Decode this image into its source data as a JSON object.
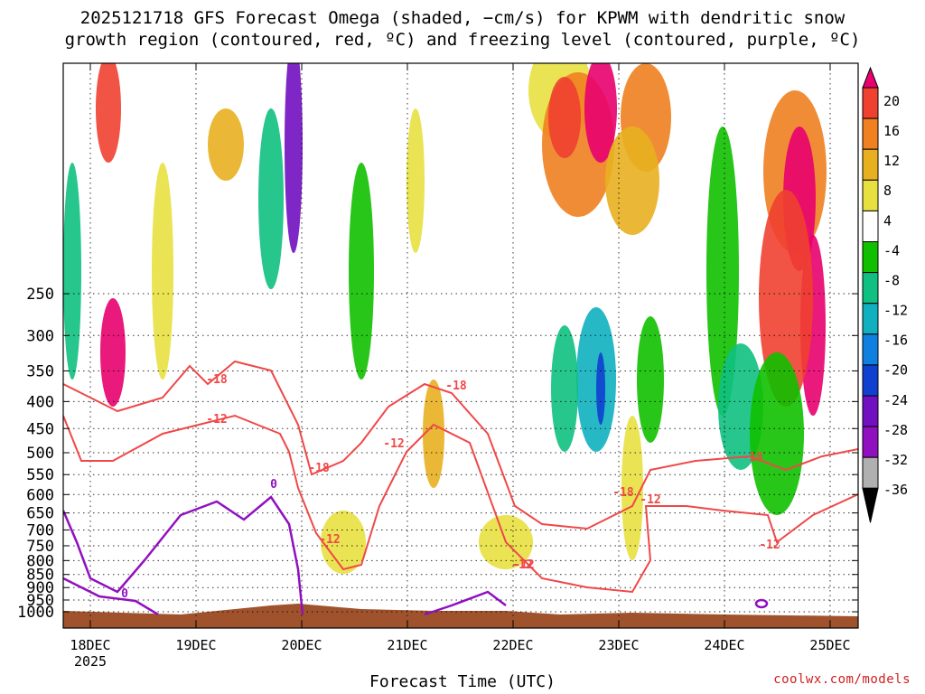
{
  "title_line1": "2025121718 GFS Forecast Omega (shaded, −cm/s) for KPWM with dendritic snow",
  "title_line2": "growth region (contoured, red, ºC) and freezing level (contoured, purple, ºC)",
  "credit": "coolwx.com/models",
  "chart_data": {
    "type": "heatmap",
    "xlabel": "Forecast Time (UTC)",
    "x_ticks": [
      "18DEC",
      "19DEC",
      "20DEC",
      "21DEC",
      "22DEC",
      "23DEC",
      "24DEC",
      "25DEC"
    ],
    "x_year_label": "2025",
    "y_ticks": [
      250,
      300,
      350,
      400,
      450,
      500,
      550,
      600,
      650,
      700,
      750,
      800,
      850,
      900,
      950,
      1000
    ],
    "y_scale": "log",
    "y_direction": "decreasing upward",
    "grid": true,
    "colorbar": {
      "levels": [
        20,
        16,
        12,
        8,
        4,
        -4,
        -8,
        -12,
        -16,
        -20,
        -24,
        -28,
        -32,
        -36
      ],
      "colors": [
        "#e8006e",
        "#f04030",
        "#f08020",
        "#e8b020",
        "#e8e040",
        "#ffffff",
        "#10c000",
        "#10c080",
        "#10b0c0",
        "#1080e0",
        "#1040d0",
        "#7010c0",
        "#9010c0",
        "#b0b0b0",
        "#000000"
      ],
      "extend": "both"
    },
    "contours": [
      {
        "name": "dendritic growth zone",
        "color": "#f04848",
        "levels": [
          -12,
          -18
        ]
      },
      {
        "name": "freezing level",
        "color": "#9010c0",
        "levels": [
          0
        ]
      }
    ],
    "contour_labels": [
      "-18",
      "-12",
      "-12",
      "-18",
      "-12",
      "-18",
      "-12",
      "-18",
      "-12",
      "-18",
      "-12",
      "-12",
      "0",
      "0"
    ]
  }
}
